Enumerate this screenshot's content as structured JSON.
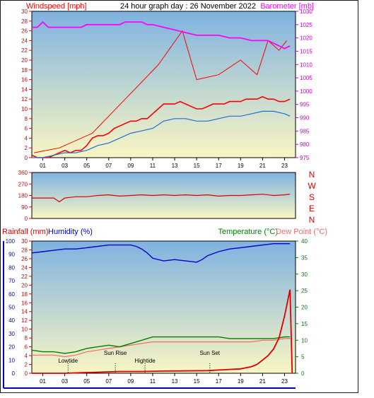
{
  "header": {
    "title": "24 hour graph day : 26 November 2022",
    "left_label": "Windspeed [mph]",
    "right_label": "Barometer [mb]"
  },
  "bottom_header": {
    "rain_label": "Rainfall (mm)",
    "humidity_label": "Humidity (%)",
    "temp_label": "Temperature (°C)",
    "dew_label": "Dew Point (°C)"
  },
  "compass": [
    "N",
    "W",
    "S",
    "E",
    "N"
  ],
  "annotations": {
    "lowtide": "Lowtide",
    "sunrise": "Sun Rise",
    "hightide": "Hightide",
    "sunset": "Sun Set"
  },
  "colors": {
    "wind": "#ff0000",
    "gust": "#ff0000",
    "avg_wind": "#1e6fd9",
    "barometer": "#ff00ff",
    "direction": "#dd0000",
    "humidity": "#0000cc",
    "temperature": "#008000",
    "dewpoint": "#ff6666",
    "rainfall": "#dd0000",
    "bg_top": "#7fb2e0",
    "bg_bottom": "#f9f6c4"
  },
  "chart_data": [
    {
      "type": "line",
      "title": "24 hour graph day : 26 November 2022",
      "xlabel": "",
      "ylabel": "Windspeed [mph]",
      "y2label": "Barometer [mb]",
      "x_ticks": [
        "01",
        "03",
        "05",
        "07",
        "09",
        "11",
        "13",
        "15",
        "17",
        "19",
        "21",
        "23"
      ],
      "xlim": [
        0,
        24
      ],
      "ylim": [
        0,
        30
      ],
      "y_ticks": [
        0,
        2,
        4,
        6,
        8,
        10,
        12,
        14,
        16,
        18,
        20,
        22,
        24,
        26,
        28,
        30
      ],
      "y2lim": [
        975,
        1030
      ],
      "y2_ticks": [
        975,
        980,
        985,
        990,
        995,
        1000,
        1005,
        1010,
        1015,
        1020,
        1025,
        1030
      ],
      "series": [
        {
          "name": "Windspeed",
          "x": [
            0,
            0.5,
            1,
            1.5,
            2,
            2.5,
            3,
            3.5,
            4,
            4.5,
            5,
            5.5,
            6,
            6.5,
            7,
            7.5,
            8,
            8.5,
            9,
            9.5,
            10,
            10.5,
            11,
            11.5,
            12,
            12.5,
            13,
            13.5,
            14,
            14.5,
            15,
            15.5,
            16,
            16.5,
            17,
            17.5,
            18,
            18.5,
            19,
            19.5,
            20,
            20.5,
            21,
            21.5,
            22,
            22.5,
            23,
            23.5
          ],
          "y": [
            0.5,
            0,
            0,
            0,
            0.5,
            1,
            1.5,
            1,
            1.5,
            1.5,
            2.5,
            4,
            4.5,
            4.5,
            5,
            6,
            6.5,
            7,
            7.5,
            7.5,
            8,
            8,
            9,
            10,
            11,
            11,
            11,
            11.5,
            11,
            10.5,
            10,
            10,
            10.5,
            11,
            11,
            11,
            11.5,
            11.5,
            11.5,
            12,
            12,
            12,
            12.5,
            12,
            12,
            11.5,
            11.5,
            12
          ]
        },
        {
          "name": "Gust",
          "x": [
            0.2,
            2.5,
            5.5,
            8.5,
            11.5,
            13.7,
            15,
            17,
            19,
            20.5,
            21.5,
            22.5,
            23.2
          ],
          "y": [
            1,
            2,
            5,
            12,
            19,
            26,
            16,
            17,
            20,
            17,
            24,
            22,
            24
          ]
        },
        {
          "name": "Average wind",
          "x": [
            0,
            1,
            2,
            3,
            4,
            5,
            6,
            7,
            8,
            9,
            10,
            11,
            12,
            13,
            14,
            15,
            16,
            17,
            18,
            19,
            20,
            21,
            22,
            23,
            23.5
          ],
          "y": [
            0,
            0,
            0.5,
            1,
            1,
            1.5,
            2.5,
            3,
            4,
            5,
            5.5,
            6,
            7.5,
            8,
            8,
            7.5,
            7.5,
            8,
            8.5,
            8.5,
            9,
            9.5,
            9.5,
            9,
            8.5
          ]
        },
        {
          "name": "Barometer",
          "axis": "y2",
          "x": [
            0,
            0.5,
            1,
            1.5,
            2,
            3,
            4,
            4.5,
            5,
            6,
            7,
            8,
            8.5,
            9,
            10,
            10.5,
            11,
            12,
            13,
            14,
            15,
            16,
            17,
            18,
            19,
            20,
            21,
            21.5,
            22,
            22.5,
            23,
            23.5
          ],
          "y": [
            1024,
            1024,
            1026,
            1024,
            1024,
            1024,
            1024,
            1024,
            1025,
            1025,
            1025,
            1025,
            1026,
            1026,
            1026,
            1025,
            1025,
            1024,
            1023,
            1022,
            1021,
            1021,
            1021,
            1020,
            1020,
            1019,
            1019,
            1019,
            1018,
            1017,
            1016,
            1017
          ]
        }
      ]
    },
    {
      "type": "line",
      "title": "",
      "ylabel": "Wind direction",
      "xlim": [
        0,
        24
      ],
      "ylim": [
        0,
        360
      ],
      "y_ticks": [
        0,
        90,
        180,
        270,
        360
      ],
      "right_labels": [
        "N",
        "W",
        "S",
        "E",
        "N"
      ],
      "series": [
        {
          "name": "Direction",
          "x": [
            0,
            1,
            2,
            2.5,
            3,
            3.5,
            4,
            5,
            6,
            7,
            8,
            9,
            10,
            11,
            12,
            13,
            14,
            15,
            16,
            17,
            18,
            19,
            20,
            21,
            22,
            23,
            23.5
          ],
          "y": [
            160,
            160,
            160,
            130,
            160,
            165,
            170,
            170,
            180,
            185,
            175,
            180,
            185,
            180,
            185,
            180,
            185,
            180,
            185,
            175,
            180,
            180,
            185,
            190,
            180,
            185,
            190
          ]
        }
      ]
    },
    {
      "type": "line",
      "title": "",
      "ylabel": "Humidity (%)",
      "y2label": "Temperature (°C)",
      "x_ticks": [
        "01",
        "03",
        "05",
        "07",
        "09",
        "11",
        "13",
        "15",
        "17",
        "19",
        "21",
        "23"
      ],
      "xlim": [
        0,
        24
      ],
      "humidity_lim": [
        0,
        100
      ],
      "humidity_ticks": [
        0,
        10,
        20,
        30,
        40,
        50,
        60,
        70,
        80,
        90,
        100
      ],
      "rain_lim": [
        0,
        30
      ],
      "rain_ticks": [
        0,
        2,
        4,
        6,
        8,
        10,
        12,
        14,
        16,
        18,
        20,
        22,
        24,
        26,
        28,
        30
      ],
      "temp_lim": [
        0,
        40
      ],
      "temp_ticks": [
        0,
        5,
        10,
        15,
        20,
        25,
        30,
        35,
        40
      ],
      "series": [
        {
          "name": "Humidity",
          "axis": "humidity",
          "x": [
            0,
            1,
            2,
            3,
            4,
            5,
            6,
            7,
            8,
            9,
            9.5,
            10,
            10.5,
            11,
            12,
            13,
            14,
            15,
            15.5,
            16,
            17,
            18,
            19,
            20,
            21,
            22,
            23,
            23.5
          ],
          "y": [
            91,
            92,
            93,
            94,
            94,
            95,
            96,
            97,
            97,
            97,
            96,
            94,
            91,
            87,
            85,
            86,
            85,
            84,
            86,
            89,
            92,
            94,
            95,
            96,
            97,
            98,
            98,
            98
          ]
        },
        {
          "name": "Temperature",
          "axis": "temp",
          "x": [
            0,
            1,
            2,
            3,
            4,
            5,
            6,
            7,
            8,
            9,
            10,
            11,
            12,
            13,
            14,
            15,
            16,
            17,
            18,
            19,
            20,
            21,
            22,
            23,
            23.5
          ],
          "y": [
            7,
            6.5,
            6.5,
            6,
            6.5,
            7.5,
            8,
            8.5,
            8,
            9,
            10,
            11,
            11,
            11,
            11,
            11,
            11,
            11,
            10.5,
            10.5,
            10.5,
            10.5,
            10.5,
            11,
            11
          ]
        },
        {
          "name": "Dew Point",
          "axis": "temp",
          "x": [
            0,
            1,
            2,
            3,
            4,
            5,
            6,
            7,
            8,
            9,
            10,
            11,
            12,
            13,
            14,
            15,
            16,
            17,
            18,
            19,
            20,
            21,
            22,
            23,
            23.5
          ],
          "y": [
            5.5,
            5.5,
            5.5,
            5,
            5.5,
            6.5,
            7,
            7.5,
            8,
            8.5,
            9,
            9.5,
            9.5,
            9.5,
            9.5,
            9.5,
            9.5,
            9.5,
            9.5,
            9.5,
            9.5,
            10,
            10,
            10.5,
            10.5
          ]
        },
        {
          "name": "Rainfall",
          "axis": "rain",
          "x": [
            0,
            3,
            8,
            10,
            12,
            16,
            17.5,
            19,
            20,
            20.5,
            21,
            21.5,
            22,
            22.5,
            23,
            23.5,
            23.7
          ],
          "y": [
            0,
            0,
            0.4,
            0.4,
            0.5,
            0.6,
            0.8,
            1,
            1.5,
            2,
            3,
            4,
            5.5,
            8,
            13,
            19,
            0
          ]
        }
      ],
      "markers": [
        {
          "label": "Lowtide",
          "x": 3.3
        },
        {
          "label": "Sun Rise",
          "x": 7.6
        },
        {
          "label": "Hightide",
          "x": 10.3
        },
        {
          "label": "Sun Set",
          "x": 16.2
        }
      ]
    }
  ]
}
